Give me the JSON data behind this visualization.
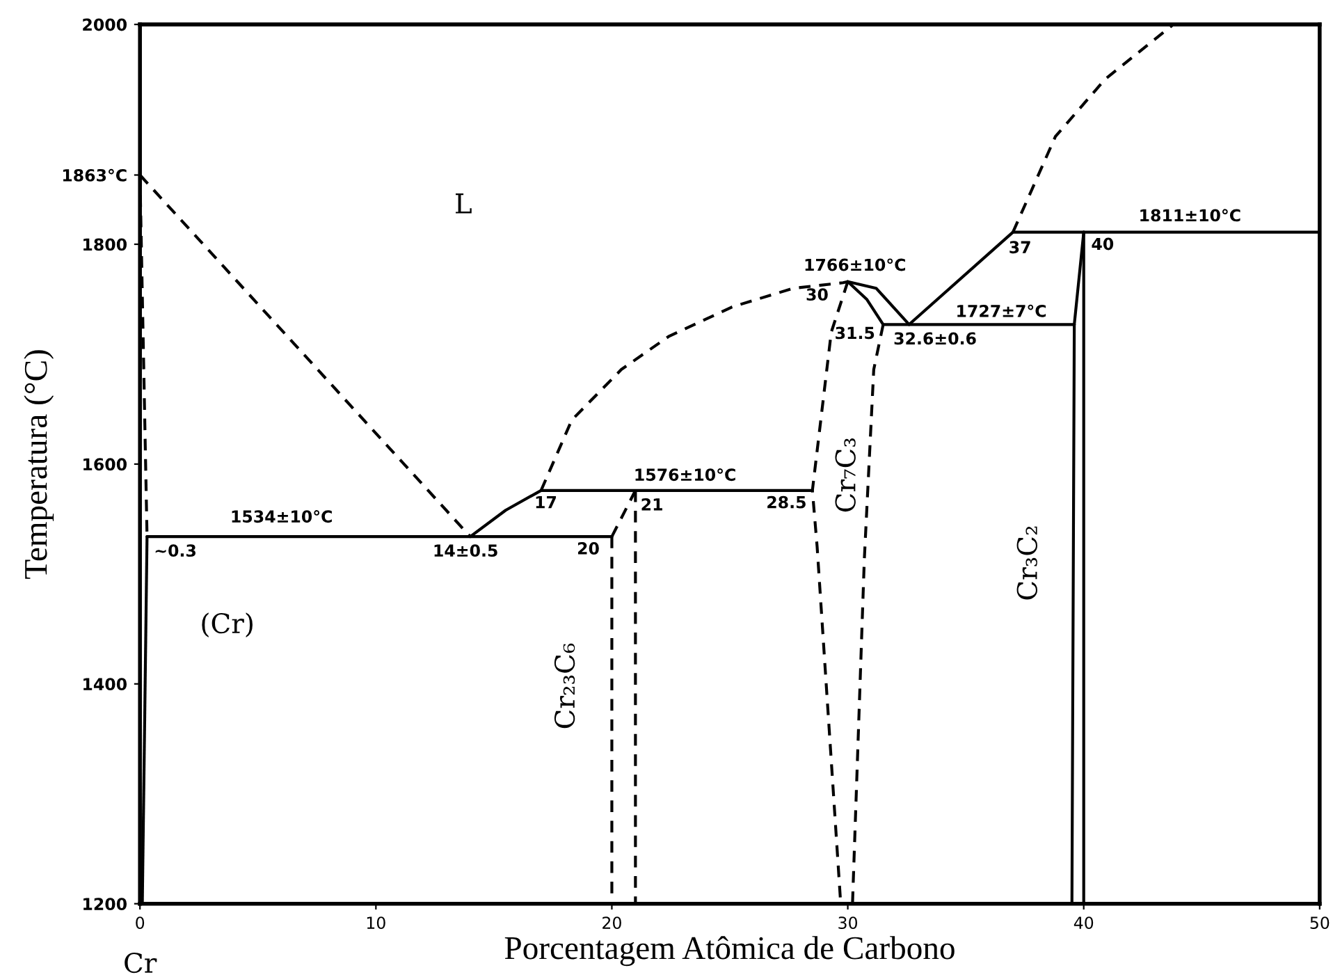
{
  "chart_data": {
    "type": "line",
    "xlabel": "Porcentagem Atômica de Carbono",
    "ylabel": "Temperatura (°C)",
    "xlim": [
      0,
      50
    ],
    "ylim": [
      1200,
      2000
    ],
    "xticks": [
      0,
      10,
      20,
      30,
      40,
      50
    ],
    "yticks": [
      1200,
      1400,
      1600,
      1800,
      {
        "value": 1863,
        "label": "1863°C"
      },
      2000
    ],
    "grid": false,
    "marker": "none",
    "series": [
      {
        "color": "#000000",
        "line_style": "dashed",
        "x": [
          0,
          14
        ],
        "values": [
          1863,
          1534
        ]
      },
      {
        "color": "#000000",
        "line_style": "dashed",
        "x": [
          0,
          0.3
        ],
        "values": [
          1863,
          1534
        ]
      },
      {
        "color": "#000000",
        "line_style": "solid",
        "x": [
          0.3,
          0.1
        ],
        "values": [
          1534,
          1200
        ]
      },
      {
        "color": "#000000",
        "line_style": "solid",
        "x": [
          0.3,
          20
        ],
        "values": [
          1534,
          1534
        ]
      },
      {
        "color": "#000000",
        "line_style": "solid",
        "x": [
          14,
          15.5,
          17
        ],
        "values": [
          1534,
          1558,
          1576
        ]
      },
      {
        "color": "#000000",
        "line_style": "dashed",
        "x": [
          17,
          18.3,
          20.4,
          22.4,
          25.1,
          27.7,
          29.8,
          30
        ],
        "values": [
          1576,
          1640,
          1686,
          1716,
          1743,
          1760,
          1765,
          1766
        ]
      },
      {
        "color": "#000000",
        "line_style": "solid",
        "x": [
          17,
          28.5
        ],
        "values": [
          1576,
          1576
        ]
      },
      {
        "color": "#000000",
        "line_style": "dashed",
        "x": [
          20,
          21
        ],
        "values": [
          1534,
          1576
        ]
      },
      {
        "color": "#000000",
        "line_style": "dashed",
        "x": [
          20,
          20
        ],
        "values": [
          1534,
          1200
        ]
      },
      {
        "color": "#000000",
        "line_style": "dashed",
        "x": [
          21,
          21
        ],
        "values": [
          1576,
          1200
        ]
      },
      {
        "color": "#000000",
        "line_style": "dashed",
        "x": [
          30,
          29.3,
          28.5,
          28.7,
          29.7
        ],
        "values": [
          1766,
          1720,
          1576,
          1525,
          1200
        ]
      },
      {
        "color": "#000000",
        "line_style": "dashed",
        "x": [
          31.5,
          31.1,
          30.7,
          30.2
        ],
        "values": [
          1727,
          1686,
          1513,
          1200
        ]
      },
      {
        "color": "#000000",
        "line_style": "solid",
        "x": [
          30,
          30.8,
          31.5
        ],
        "values": [
          1766,
          1750,
          1727
        ]
      },
      {
        "color": "#000000",
        "line_style": "solid",
        "x": [
          30,
          31.2,
          32.6
        ],
        "values": [
          1766,
          1760,
          1727
        ]
      },
      {
        "color": "#000000",
        "line_style": "solid",
        "x": [
          31.5,
          39.6
        ],
        "values": [
          1727,
          1727
        ]
      },
      {
        "color": "#000000",
        "line_style": "solid",
        "x": [
          32.6,
          37
        ],
        "values": [
          1727,
          1811
        ]
      },
      {
        "color": "#000000",
        "line_style": "dashed",
        "x": [
          37,
          38.8,
          40.9,
          43.8
        ],
        "values": [
          1811,
          1898,
          1950,
          2000
        ]
      },
      {
        "color": "#000000",
        "line_style": "solid",
        "x": [
          37,
          50
        ],
        "values": [
          1811,
          1811
        ]
      },
      {
        "color": "#000000",
        "line_style": "solid",
        "x": [
          40,
          40
        ],
        "values": [
          1811,
          1200
        ]
      },
      {
        "color": "#000000",
        "line_style": "solid",
        "x": [
          40,
          39.6,
          39.5
        ],
        "values": [
          1811,
          1727,
          1200
        ]
      }
    ],
    "annotations": [
      "L",
      "1534±10°C",
      "~0.3",
      "14±0.5",
      "20",
      "17",
      "21",
      "1576±10°C",
      "28.5",
      "1766±10°C",
      "30",
      "31.5",
      "32.6±0.6",
      "1727±7°C",
      "37",
      "40",
      "1811±10°C",
      "(Cr)",
      "Cr₂₃C₆",
      "Cr₇C₃",
      "Cr₃C₂",
      "Cr"
    ]
  }
}
